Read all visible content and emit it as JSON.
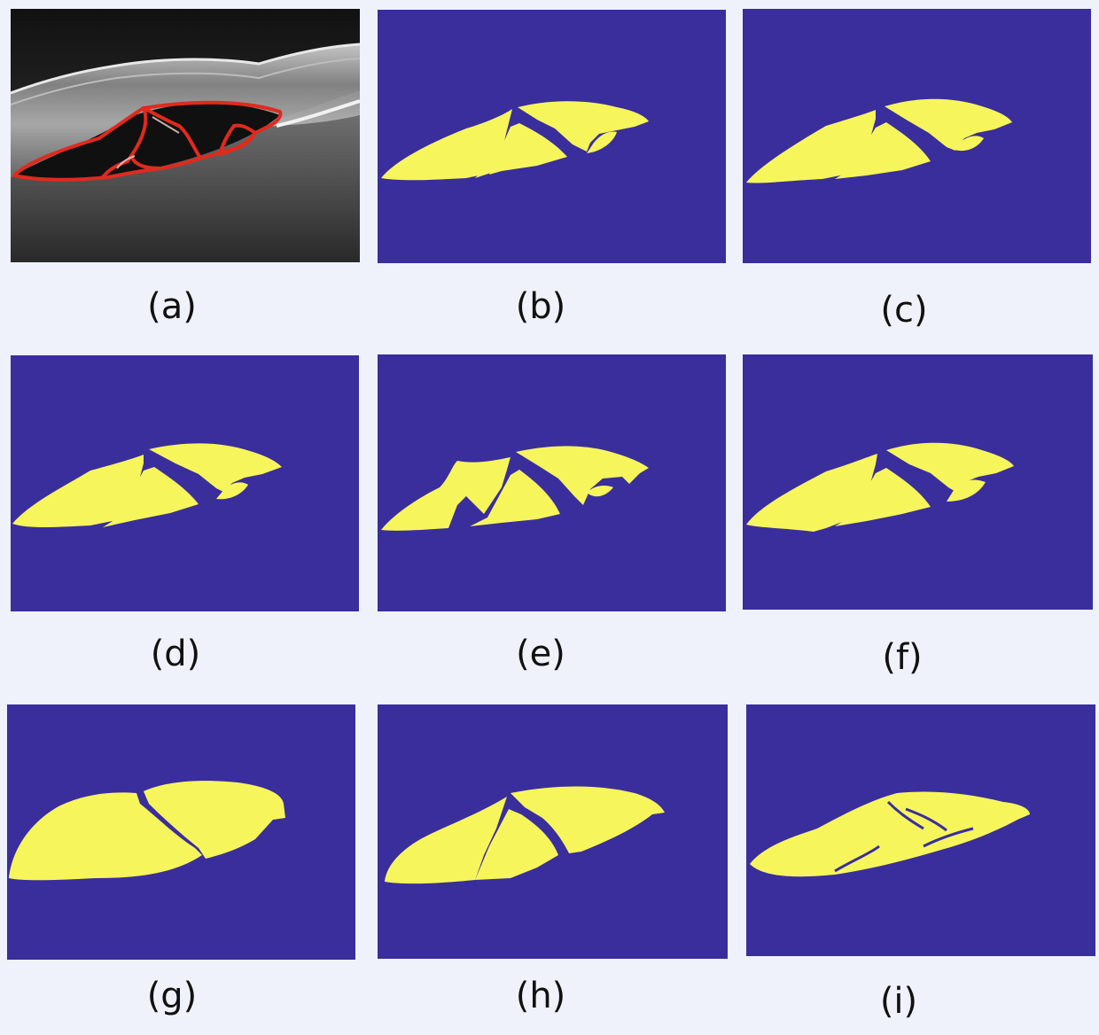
{
  "figure": {
    "colors": {
      "background": "#eff2fa",
      "mask_background": "#3a2e9d",
      "mask_fluid": "#f6f55c",
      "annotation_contour": "#e02a1e"
    },
    "panels": [
      {
        "label": "(a)",
        "kind": "oct-scan-with-red-contour"
      },
      {
        "label": "(b)",
        "kind": "segmentation-mask"
      },
      {
        "label": "(c)",
        "kind": "segmentation-mask"
      },
      {
        "label": "(d)",
        "kind": "segmentation-mask"
      },
      {
        "label": "(e)",
        "kind": "segmentation-mask"
      },
      {
        "label": "(f)",
        "kind": "segmentation-mask"
      },
      {
        "label": "(g)",
        "kind": "segmentation-mask"
      },
      {
        "label": "(h)",
        "kind": "segmentation-mask"
      },
      {
        "label": "(i)",
        "kind": "segmentation-mask"
      }
    ]
  }
}
